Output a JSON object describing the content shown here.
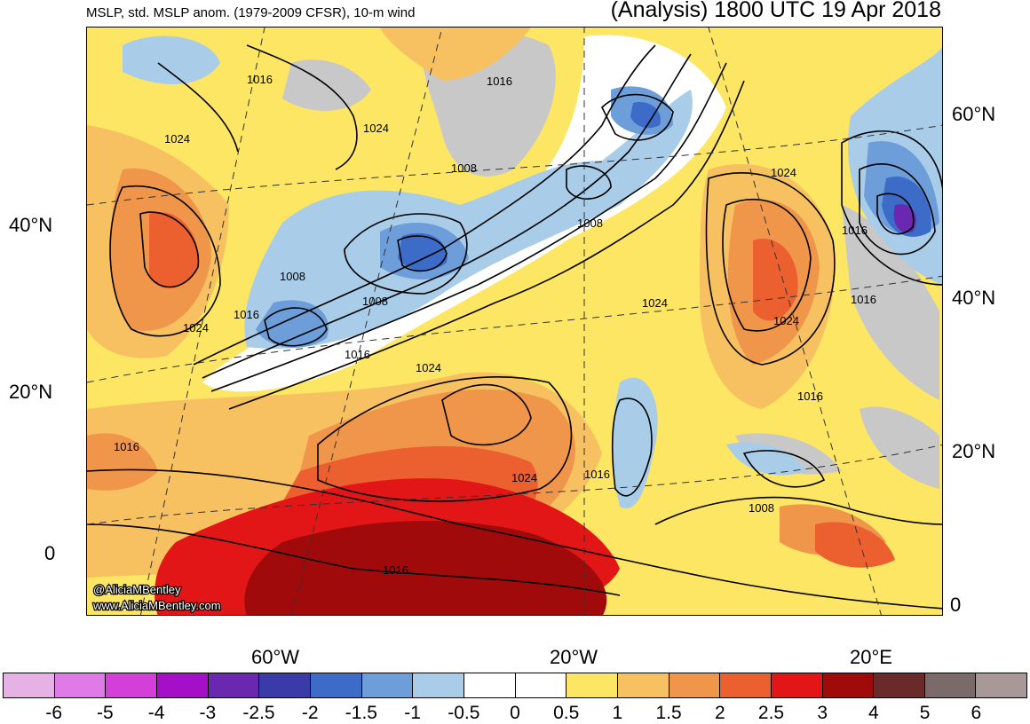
{
  "header": {
    "left_title": "MSLP, std. MSLP anom. (1979-2009 CFSR), 10-m wind",
    "right_title": "(Analysis) 1800 UTC 19 Apr 2018"
  },
  "credits": {
    "handle": "@AliciaMBentley",
    "url": "www.AliciaMBentley.com"
  },
  "isobar_labels": [
    "1016",
    "1016",
    "1024",
    "1024",
    "1008",
    "1008",
    "1008",
    "1016",
    "1024",
    "1008",
    "1016",
    "1024",
    "1024",
    "1016",
    "1024",
    "1016",
    "1008",
    "1024",
    "1016",
    "1016",
    "1016",
    "1016"
  ],
  "lat_labels_left": [
    "40°N",
    "20°N",
    "0"
  ],
  "lat_labels_right": [
    "60°N",
    "40°N",
    "20°N",
    "0"
  ],
  "lon_labels": [
    "60°W",
    "20°W",
    "20°E"
  ],
  "colorbar": {
    "colors": [
      "#e6b2e6",
      "#e07ae6",
      "#d43fd9",
      "#a50fc8",
      "#6a28b0",
      "#3a3aa8",
      "#3c6cc8",
      "#6e9ed9",
      "#a9cce9",
      "#ffffff",
      "#ffffff",
      "#fde663",
      "#f7c060",
      "#f0964a",
      "#ec6030",
      "#e21616",
      "#a00a0a",
      "#6b2a2a",
      "#7a6a6a",
      "#a89898"
    ],
    "labels": [
      "-6",
      "-5",
      "-4",
      "-3",
      "-2.5",
      "-2",
      "-1.5",
      "-1",
      "-0.5",
      "0",
      "0.5",
      "1",
      "1.5",
      "2",
      "2.5",
      "3",
      "4",
      "5",
      "6"
    ]
  }
}
